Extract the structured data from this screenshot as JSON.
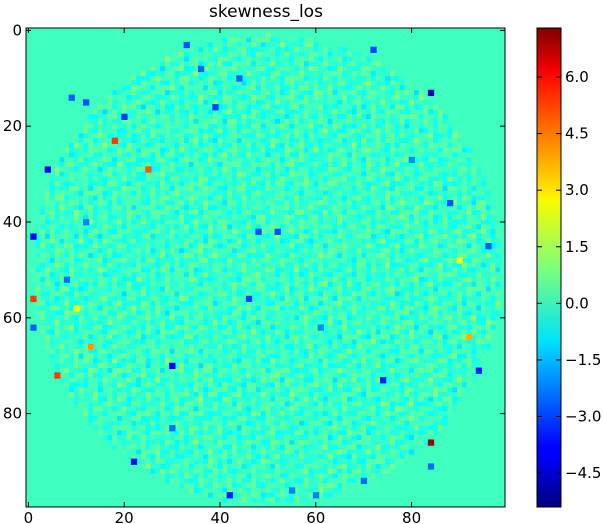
{
  "chart_data": {
    "type": "heatmap",
    "title": "skewness_los",
    "x_ticks": [
      "0",
      "20",
      "40",
      "60",
      "80"
    ],
    "x_tick_values": [
      0,
      20,
      40,
      60,
      80
    ],
    "y_ticks": [
      "0",
      "20",
      "40",
      "60",
      "80"
    ],
    "y_tick_values": [
      0,
      20,
      40,
      60,
      80
    ],
    "xlim": [
      0,
      99
    ],
    "ylim": [
      0,
      99
    ],
    "grid": false,
    "colorbar": {
      "ticks": [
        "−4.5",
        "−3.0",
        "−1.5",
        "0.0",
        "1.5",
        "3.0",
        "4.5",
        "6.0"
      ],
      "tick_values": [
        -4.5,
        -3.0,
        -1.5,
        0.0,
        1.5,
        3.0,
        4.5,
        6.0
      ],
      "range": [
        -5.4,
        7.3
      ],
      "colormap": "jet"
    },
    "background_value": 0.15,
    "texture": {
      "shape": "disk",
      "center": [
        50,
        50
      ],
      "radius": 49,
      "approx_value_range": [
        -1.2,
        1.2
      ]
    },
    "highlighted_cells": [
      {
        "x": 84,
        "y": 86,
        "value": 7.0
      },
      {
        "x": 84,
        "y": 13,
        "value": -4.8
      },
      {
        "x": 1,
        "y": 56,
        "value": 5.0
      },
      {
        "x": 6,
        "y": 72,
        "value": 5.0
      },
      {
        "x": 18,
        "y": 23,
        "value": 5.0
      },
      {
        "x": 25,
        "y": 29,
        "value": 4.6
      },
      {
        "x": 13,
        "y": 66,
        "value": 3.8
      },
      {
        "x": 4,
        "y": 29,
        "value": -4.2
      },
      {
        "x": 1,
        "y": 43,
        "value": -4.0
      },
      {
        "x": 30,
        "y": 70,
        "value": -4.0
      },
      {
        "x": 22,
        "y": 90,
        "value": -3.6
      },
      {
        "x": 39,
        "y": 16,
        "value": -3.0
      },
      {
        "x": 42,
        "y": 97,
        "value": -3.5
      },
      {
        "x": 46,
        "y": 56,
        "value": -3.0
      },
      {
        "x": 48,
        "y": 42,
        "value": -2.8
      },
      {
        "x": 52,
        "y": 42,
        "value": -2.8
      },
      {
        "x": 74,
        "y": 73,
        "value": -3.4
      },
      {
        "x": 94,
        "y": 71,
        "value": -3.4
      },
      {
        "x": 72,
        "y": 4,
        "value": -3.0
      },
      {
        "x": 20,
        "y": 18,
        "value": -3.0
      },
      {
        "x": 12,
        "y": 15,
        "value": -2.8
      },
      {
        "x": 9,
        "y": 14,
        "value": -2.6
      },
      {
        "x": 36,
        "y": 8,
        "value": -2.6
      },
      {
        "x": 44,
        "y": 10,
        "value": -2.6
      },
      {
        "x": 88,
        "y": 36,
        "value": -2.8
      },
      {
        "x": 96,
        "y": 45,
        "value": -2.6
      },
      {
        "x": 92,
        "y": 64,
        "value": 3.5
      },
      {
        "x": 84,
        "y": 91,
        "value": -2.4
      },
      {
        "x": 30,
        "y": 83,
        "value": -2.4
      },
      {
        "x": 8,
        "y": 52,
        "value": -2.4
      },
      {
        "x": 1,
        "y": 62,
        "value": -2.6
      },
      {
        "x": 12,
        "y": 40,
        "value": -2.2
      },
      {
        "x": 60,
        "y": 97,
        "value": -2.2
      },
      {
        "x": 90,
        "y": 48,
        "value": 2.4
      },
      {
        "x": 10,
        "y": 58,
        "value": 2.6
      },
      {
        "x": 33,
        "y": 3,
        "value": -2.8
      },
      {
        "x": 55,
        "y": 96,
        "value": -2.2
      },
      {
        "x": 70,
        "y": 94,
        "value": -2.4
      },
      {
        "x": 61,
        "y": 62,
        "value": -2.0
      },
      {
        "x": 80,
        "y": 27,
        "value": -2.0
      }
    ]
  }
}
